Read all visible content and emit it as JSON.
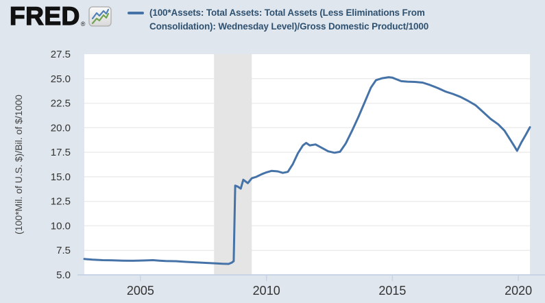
{
  "header": {
    "logo_text": "FRED",
    "logo_registered": "®",
    "legend": {
      "line1": "(100*Assets: Total Assets: Total Assets (Less Eliminations From",
      "line2": "Consolidation): Wednesday Level)/Gross Domestic Product/1000",
      "marker_color": "#4572a7"
    }
  },
  "colors": {
    "page_background": "#dfe6ee",
    "plot_background": "#ffffff",
    "gridline": "#ececec",
    "recession_band": "#e5e5e5",
    "series_line": "#4572a7",
    "axis_line": "#c8d3e6",
    "tick_label": "#333333",
    "legend_text": "#2f5170",
    "logo_icon_blue": "#4f81b8",
    "logo_icon_green": "#70a34f"
  },
  "chart_data": {
    "type": "line",
    "title": "",
    "series_name": "(100*Assets: Total Assets: Total Assets (Less Eliminations From Consolidation): Wednesday Level)/Gross Domestic Product/1000",
    "xlabel": "",
    "ylabel": "(100*Mil. of U.S. $)/Bil. of $/1000",
    "x_range": [
      2002.77,
      2020.46
    ],
    "y_range": [
      5,
      27.5
    ],
    "grid": "horizontal-only",
    "legend_position": "top",
    "line_color": "#4572a7",
    "line_width": 3,
    "x_ticks": [
      {
        "value": 2005,
        "label": "2005"
      },
      {
        "value": 2010,
        "label": "2010"
      },
      {
        "value": 2015,
        "label": "2015"
      },
      {
        "value": 2020,
        "label": "2020"
      }
    ],
    "y_ticks": [
      {
        "value": 27.5,
        "label": "27.5"
      },
      {
        "value": 25.0,
        "label": "25.0"
      },
      {
        "value": 22.5,
        "label": "22.5"
      },
      {
        "value": 20.0,
        "label": "20.0"
      },
      {
        "value": 17.5,
        "label": "17.5"
      },
      {
        "value": 15.0,
        "label": "15.0"
      },
      {
        "value": 12.5,
        "label": "12.5"
      },
      {
        "value": 10.0,
        "label": "10.0"
      },
      {
        "value": 7.5,
        "label": "7.5"
      },
      {
        "value": 5.0,
        "label": "5.0"
      }
    ],
    "recession_band": {
      "start": 2007.92,
      "end": 2009.42,
      "color": "#e5e5e5"
    },
    "points": [
      [
        2002.77,
        6.62
      ],
      [
        2003.1,
        6.55
      ],
      [
        2003.5,
        6.5
      ],
      [
        2003.9,
        6.48
      ],
      [
        2004.3,
        6.45
      ],
      [
        2004.7,
        6.44
      ],
      [
        2005.1,
        6.47
      ],
      [
        2005.5,
        6.5
      ],
      [
        2005.75,
        6.45
      ],
      [
        2006.0,
        6.42
      ],
      [
        2006.4,
        6.4
      ],
      [
        2006.8,
        6.33
      ],
      [
        2007.2,
        6.28
      ],
      [
        2007.6,
        6.22
      ],
      [
        2007.95,
        6.18
      ],
      [
        2008.25,
        6.13
      ],
      [
        2008.5,
        6.12
      ],
      [
        2008.62,
        6.25
      ],
      [
        2008.7,
        6.4
      ],
      [
        2008.76,
        14.1
      ],
      [
        2008.86,
        14.0
      ],
      [
        2008.98,
        13.8
      ],
      [
        2009.08,
        14.7
      ],
      [
        2009.26,
        14.35
      ],
      [
        2009.42,
        14.85
      ],
      [
        2009.6,
        15.0
      ],
      [
        2009.8,
        15.25
      ],
      [
        2010.0,
        15.45
      ],
      [
        2010.2,
        15.6
      ],
      [
        2010.45,
        15.55
      ],
      [
        2010.65,
        15.4
      ],
      [
        2010.85,
        15.5
      ],
      [
        2011.05,
        16.3
      ],
      [
        2011.25,
        17.4
      ],
      [
        2011.45,
        18.2
      ],
      [
        2011.58,
        18.45
      ],
      [
        2011.72,
        18.2
      ],
      [
        2011.95,
        18.3
      ],
      [
        2012.2,
        17.95
      ],
      [
        2012.45,
        17.6
      ],
      [
        2012.7,
        17.45
      ],
      [
        2012.92,
        17.55
      ],
      [
        2013.15,
        18.4
      ],
      [
        2013.4,
        19.7
      ],
      [
        2013.65,
        21.1
      ],
      [
        2013.9,
        22.6
      ],
      [
        2014.15,
        24.1
      ],
      [
        2014.35,
        24.85
      ],
      [
        2014.6,
        25.05
      ],
      [
        2014.85,
        25.15
      ],
      [
        2015.0,
        25.1
      ],
      [
        2015.15,
        24.95
      ],
      [
        2015.35,
        24.75
      ],
      [
        2015.6,
        24.7
      ],
      [
        2015.9,
        24.67
      ],
      [
        2016.2,
        24.6
      ],
      [
        2016.5,
        24.35
      ],
      [
        2016.8,
        24.05
      ],
      [
        2017.1,
        23.7
      ],
      [
        2017.4,
        23.45
      ],
      [
        2017.7,
        23.15
      ],
      [
        2018.0,
        22.75
      ],
      [
        2018.3,
        22.3
      ],
      [
        2018.6,
        21.6
      ],
      [
        2018.9,
        20.9
      ],
      [
        2019.2,
        20.35
      ],
      [
        2019.45,
        19.7
      ],
      [
        2019.65,
        18.9
      ],
      [
        2019.82,
        18.2
      ],
      [
        2019.95,
        17.65
      ],
      [
        2020.12,
        18.5
      ],
      [
        2020.3,
        19.3
      ],
      [
        2020.46,
        20.05
      ]
    ]
  }
}
